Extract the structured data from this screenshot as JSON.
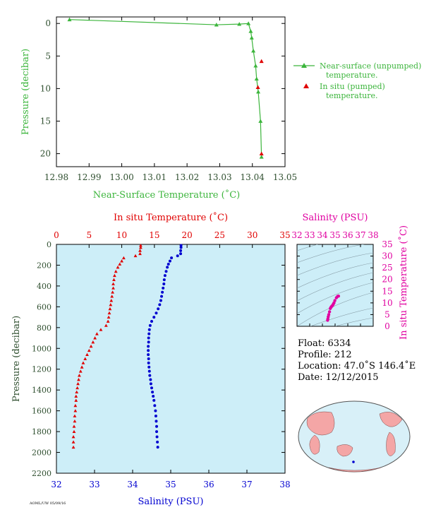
{
  "colors": {
    "green": "#3cb53c",
    "red": "#e00000",
    "blue": "#0000d0",
    "magenta": "#e000a0",
    "panel_bg": "#cdeef8",
    "tick_text": "#2f4f2f",
    "map_land": "#f4a6a6",
    "map_ocean": "#d8f0f8"
  },
  "chart_data": [
    {
      "type": "line",
      "id": "near-surface-temperature",
      "xlabel": "Near-Surface Temperature (˚C)",
      "ylabel": "Pressure (decibar)",
      "xlim": [
        12.98,
        13.05
      ],
      "ylim": [
        22,
        -1
      ],
      "y_inverted": true,
      "x_ticks": [
        "12.98",
        "12.99",
        "13.00",
        "13.01",
        "13.02",
        "13.03",
        "13.04",
        "13.05"
      ],
      "y_ticks": [
        "0",
        "5",
        "10",
        "15",
        "20"
      ],
      "legend_position": "right",
      "series": [
        {
          "name": "Near-surface (unpumped) temperature.",
          "color": "green",
          "marker": "triangle-line",
          "x": [
            12.984,
            13.029,
            13.036,
            13.0388,
            13.0395,
            13.0398,
            13.0403,
            13.041,
            13.0413,
            13.0418,
            13.0425,
            13.0428
          ],
          "y": [
            -0.6,
            0.2,
            0.1,
            0.0,
            1.2,
            2.2,
            4.2,
            6.5,
            8.5,
            10.5,
            15.0,
            20.5
          ]
        },
        {
          "name": "In situ (pumped) temperature.",
          "color": "red",
          "marker": "triangle",
          "x": [
            13.0428,
            13.0417,
            13.0428
          ],
          "y": [
            5.8,
            9.8,
            20.0
          ]
        }
      ]
    },
    {
      "type": "scatter",
      "id": "profile",
      "ylabel": "Pressure (decibar)",
      "ylim": [
        2200,
        0
      ],
      "y_inverted": true,
      "y_ticks": [
        "0",
        "200",
        "400",
        "600",
        "800",
        "1000",
        "1200",
        "1400",
        "1600",
        "1800",
        "2000",
        "2200"
      ],
      "top_axis": {
        "label": "In situ Temperature (˚C)",
        "lim": [
          0,
          35
        ],
        "ticks": [
          "0",
          "5",
          "10",
          "15",
          "20",
          "25",
          "30",
          "35"
        ]
      },
      "bottom_axis": {
        "label": "Salinity (PSU)",
        "lim": [
          32,
          38
        ],
        "ticks": [
          "32",
          "33",
          "34",
          "35",
          "36",
          "37",
          "38"
        ]
      },
      "series": [
        {
          "name": "In situ Temperature",
          "color": "red",
          "marker": "triangle",
          "axis": "top",
          "pressure": [
            10,
            30,
            60,
            90,
            110,
            130,
            160,
            190,
            220,
            260,
            300,
            340,
            380,
            420,
            460,
            500,
            540,
            580,
            620,
            660,
            700,
            740,
            780,
            820,
            860,
            900,
            940,
            980,
            1020,
            1060,
            1100,
            1140,
            1180,
            1220,
            1260,
            1300,
            1340,
            1380,
            1420,
            1460,
            1500,
            1550,
            1600,
            1650,
            1700,
            1750,
            1800,
            1850,
            1900,
            1950
          ],
          "values": [
            12.9,
            12.9,
            12.8,
            12.8,
            12.1,
            10.3,
            10.0,
            9.7,
            9.4,
            9.1,
            8.9,
            8.8,
            8.7,
            8.7,
            8.6,
            8.5,
            8.4,
            8.3,
            8.2,
            8.1,
            8.0,
            7.9,
            7.6,
            6.8,
            6.2,
            5.9,
            5.6,
            5.3,
            5.0,
            4.7,
            4.4,
            4.1,
            3.9,
            3.7,
            3.5,
            3.4,
            3.3,
            3.2,
            3.1,
            3.0,
            3.0,
            2.9,
            2.9,
            2.8,
            2.8,
            2.7,
            2.7,
            2.6,
            2.6,
            2.6
          ]
        },
        {
          "name": "Salinity",
          "color": "blue",
          "marker": "circle",
          "axis": "bottom",
          "pressure": [
            10,
            30,
            60,
            90,
            110,
            130,
            160,
            190,
            220,
            260,
            300,
            340,
            380,
            420,
            460,
            500,
            540,
            580,
            620,
            660,
            700,
            740,
            780,
            820,
            860,
            900,
            940,
            980,
            1020,
            1060,
            1100,
            1140,
            1180,
            1220,
            1260,
            1300,
            1340,
            1380,
            1420,
            1460,
            1500,
            1550,
            1600,
            1650,
            1700,
            1750,
            1800,
            1850,
            1900,
            1950
          ],
          "values": [
            35.27,
            35.27,
            35.26,
            35.26,
            35.18,
            35.02,
            34.98,
            34.94,
            34.91,
            34.88,
            34.85,
            34.83,
            34.82,
            34.8,
            34.78,
            34.76,
            34.74,
            34.71,
            34.67,
            34.62,
            34.56,
            34.5,
            34.46,
            34.44,
            34.43,
            34.42,
            34.42,
            34.41,
            34.41,
            34.41,
            34.42,
            34.42,
            34.43,
            34.44,
            34.45,
            34.47,
            34.48,
            34.5,
            34.52,
            34.54,
            34.56,
            34.58,
            34.6,
            34.61,
            34.62,
            34.63,
            34.63,
            34.64,
            34.65,
            34.66
          ]
        }
      ]
    },
    {
      "type": "scatter",
      "id": "t-s-diagram",
      "xlabel": "Salinity (PSU)",
      "ylabel": "In situ Temperature (˚C)",
      "xlim": [
        32,
        38
      ],
      "ylim": [
        0,
        35
      ],
      "x_ticks": [
        "32",
        "33",
        "34",
        "35",
        "36",
        "37",
        "38"
      ],
      "y_ticks": [
        "0",
        "5",
        "10",
        "15",
        "20",
        "25",
        "30",
        "35"
      ],
      "x": [
        34.41,
        34.43,
        34.46,
        34.5,
        34.56,
        34.62,
        34.67,
        34.71,
        34.76,
        34.8,
        34.85,
        34.91,
        34.98,
        35.1,
        35.2,
        35.27
      ],
      "y": [
        2.6,
        3.2,
        4.1,
        5.0,
        6.2,
        7.6,
        8.1,
        8.4,
        8.7,
        8.9,
        9.4,
        10.0,
        11.0,
        12.2,
        12.8,
        12.9
      ]
    }
  ],
  "legend": {
    "near_surface": "Near-surface (unpumped)",
    "near_surface_2": "temperature.",
    "in_situ": "In situ (pumped)",
    "in_situ_2": "temperature."
  },
  "float_info": {
    "float": "Float:  6334",
    "profile": "Profile:  212",
    "location": "Location:  47.0˚S  146.4˚E",
    "date": "Date:  12/12/2015"
  },
  "footer_code": "AOML/UW 05/09/16"
}
